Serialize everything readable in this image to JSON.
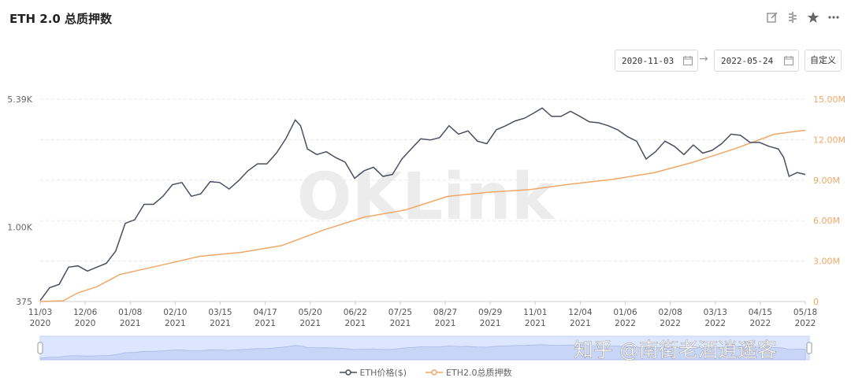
{
  "header": {
    "title": "ETH 2.0 总质押数",
    "date_start": "2020-11-03",
    "date_end": "2022-05-24",
    "custom_label": "自定义"
  },
  "watermark": "OKLink",
  "overlay_text": "知乎 @南街老酒逍遥客",
  "colors": {
    "eth_price": "#4a4e5f",
    "eth2_staked": "#f0a868",
    "grid": "#e8e8e8"
  },
  "chart_data": {
    "type": "line",
    "title": "ETH 2.0 总质押数",
    "y_left": {
      "scale": "log",
      "ticks": [
        "375",
        "1.00K",
        "5.39K"
      ],
      "range": [
        375,
        5390
      ]
    },
    "y_right": {
      "scale": "linear",
      "ticks": [
        "0",
        "3.00M",
        "6.00M",
        "9.00M",
        "12.00M",
        "15.00M"
      ],
      "range": [
        0,
        15000000
      ]
    },
    "x_ticks": [
      {
        "date": "11/03",
        "year": "2020"
      },
      {
        "date": "12/06",
        "year": "2020"
      },
      {
        "date": "01/08",
        "year": "2021"
      },
      {
        "date": "02/10",
        "year": "2021"
      },
      {
        "date": "03/15",
        "year": "2021"
      },
      {
        "date": "04/17",
        "year": "2021"
      },
      {
        "date": "05/20",
        "year": "2021"
      },
      {
        "date": "06/22",
        "year": "2021"
      },
      {
        "date": "07/25",
        "year": "2021"
      },
      {
        "date": "08/27",
        "year": "2021"
      },
      {
        "date": "09/29",
        "year": "2021"
      },
      {
        "date": "11/01",
        "year": "2021"
      },
      {
        "date": "12/04",
        "year": "2021"
      },
      {
        "date": "01/06",
        "year": "2022"
      },
      {
        "date": "02/08",
        "year": "2022"
      },
      {
        "date": "03/13",
        "year": "2022"
      },
      {
        "date": "04/15",
        "year": "2022"
      },
      {
        "date": "05/18",
        "year": "2022"
      }
    ],
    "x_range": [
      "2020-11-03",
      "2022-05-24"
    ],
    "legend_position": "bottom",
    "series": [
      {
        "name": "ETH价格($)",
        "axis": "left",
        "points": [
          [
            "2020-11-03",
            380
          ],
          [
            "2020-11-10",
            450
          ],
          [
            "2020-11-17",
            470
          ],
          [
            "2020-11-24",
            590
          ],
          [
            "2020-12-01",
            600
          ],
          [
            "2020-12-08",
            560
          ],
          [
            "2020-12-15",
            590
          ],
          [
            "2020-12-22",
            620
          ],
          [
            "2020-12-29",
            730
          ],
          [
            "2021-01-05",
            1050
          ],
          [
            "2021-01-12",
            1100
          ],
          [
            "2021-01-19",
            1350
          ],
          [
            "2021-01-26",
            1350
          ],
          [
            "2021-02-02",
            1500
          ],
          [
            "2021-02-09",
            1750
          ],
          [
            "2021-02-16",
            1800
          ],
          [
            "2021-02-23",
            1500
          ],
          [
            "2021-03-02",
            1550
          ],
          [
            "2021-03-09",
            1820
          ],
          [
            "2021-03-16",
            1800
          ],
          [
            "2021-03-23",
            1650
          ],
          [
            "2021-03-30",
            1840
          ],
          [
            "2021-04-06",
            2100
          ],
          [
            "2021-04-13",
            2300
          ],
          [
            "2021-04-20",
            2300
          ],
          [
            "2021-04-27",
            2650
          ],
          [
            "2021-05-04",
            3200
          ],
          [
            "2021-05-11",
            4100
          ],
          [
            "2021-05-15",
            3800
          ],
          [
            "2021-05-20",
            2800
          ],
          [
            "2021-05-27",
            2600
          ],
          [
            "2021-06-03",
            2700
          ],
          [
            "2021-06-10",
            2500
          ],
          [
            "2021-06-17",
            2350
          ],
          [
            "2021-06-24",
            1900
          ],
          [
            "2021-07-01",
            2100
          ],
          [
            "2021-07-08",
            2200
          ],
          [
            "2021-07-15",
            1950
          ],
          [
            "2021-07-22",
            2000
          ],
          [
            "2021-07-29",
            2450
          ],
          [
            "2021-08-05",
            2800
          ],
          [
            "2021-08-12",
            3200
          ],
          [
            "2021-08-19",
            3150
          ],
          [
            "2021-08-26",
            3250
          ],
          [
            "2021-09-02",
            3800
          ],
          [
            "2021-09-09",
            3400
          ],
          [
            "2021-09-16",
            3550
          ],
          [
            "2021-09-23",
            3100
          ],
          [
            "2021-09-30",
            3000
          ],
          [
            "2021-10-07",
            3600
          ],
          [
            "2021-10-14",
            3800
          ],
          [
            "2021-10-21",
            4050
          ],
          [
            "2021-10-28",
            4200
          ],
          [
            "2021-11-04",
            4500
          ],
          [
            "2021-11-10",
            4800
          ],
          [
            "2021-11-17",
            4300
          ],
          [
            "2021-11-24",
            4300
          ],
          [
            "2021-12-01",
            4600
          ],
          [
            "2021-12-08",
            4300
          ],
          [
            "2021-12-15",
            4000
          ],
          [
            "2021-12-22",
            3950
          ],
          [
            "2021-12-29",
            3800
          ],
          [
            "2022-01-05",
            3600
          ],
          [
            "2022-01-12",
            3300
          ],
          [
            "2022-01-19",
            3100
          ],
          [
            "2022-01-26",
            2450
          ],
          [
            "2022-02-02",
            2700
          ],
          [
            "2022-02-09",
            3100
          ],
          [
            "2022-02-16",
            2900
          ],
          [
            "2022-02-23",
            2600
          ],
          [
            "2022-03-02",
            2950
          ],
          [
            "2022-03-09",
            2650
          ],
          [
            "2022-03-16",
            2750
          ],
          [
            "2022-03-23",
            3000
          ],
          [
            "2022-03-30",
            3400
          ],
          [
            "2022-04-06",
            3350
          ],
          [
            "2022-04-13",
            3050
          ],
          [
            "2022-04-20",
            3050
          ],
          [
            "2022-04-27",
            2900
          ],
          [
            "2022-05-04",
            2800
          ],
          [
            "2022-05-08",
            2500
          ],
          [
            "2022-05-12",
            1950
          ],
          [
            "2022-05-18",
            2050
          ],
          [
            "2022-05-24",
            2000
          ]
        ]
      },
      {
        "name": "ETH2.0总质押数",
        "axis": "right",
        "points": [
          [
            "2020-11-03",
            0
          ],
          [
            "2020-11-20",
            60000
          ],
          [
            "2020-12-01",
            650000
          ],
          [
            "2020-12-15",
            1100000
          ],
          [
            "2021-01-01",
            2000000
          ],
          [
            "2021-02-01",
            2700000
          ],
          [
            "2021-03-01",
            3350000
          ],
          [
            "2021-04-01",
            3650000
          ],
          [
            "2021-05-01",
            4150000
          ],
          [
            "2021-06-01",
            5300000
          ],
          [
            "2021-07-01",
            6250000
          ],
          [
            "2021-08-01",
            6800000
          ],
          [
            "2021-09-01",
            7800000
          ],
          [
            "2021-10-01",
            8100000
          ],
          [
            "2021-11-01",
            8300000
          ],
          [
            "2021-12-01",
            8700000
          ],
          [
            "2022-01-01",
            9050000
          ],
          [
            "2022-02-01",
            9550000
          ],
          [
            "2022-03-01",
            10300000
          ],
          [
            "2022-04-01",
            11300000
          ],
          [
            "2022-05-01",
            12400000
          ],
          [
            "2022-05-24",
            12700000
          ]
        ]
      }
    ]
  }
}
